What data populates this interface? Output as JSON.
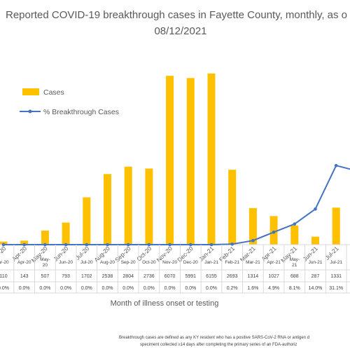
{
  "chart_data": {
    "type": "bar+line",
    "title_line1": "Reported COVID-19 breakthrough cases in Fayette County, monthly, as o",
    "title_line2": "08/12/2021",
    "xlabel": "Month of illness onset or testing",
    "footnote_line1": "Breakthrough cases are defined as any KY resident who has a positive SARS-CoV-2 RNA or antigen d",
    "footnote_line2": "speciment collected ≥14 days after completing the primary series of an FDA-authoriz",
    "legend_position": "upper-left",
    "legend_cases": "Cases",
    "legend_pct": "% Breakthrough Cases",
    "grid": false,
    "colors": {
      "bars": "#FFC000",
      "line": "#4472C4"
    },
    "categories": [
      {
        "tick": [
          "ar-20"
        ],
        "row": [
          "ar-20"
        ]
      },
      {
        "tick": [
          "Apr-20"
        ],
        "row": [
          "Apr-20"
        ]
      },
      {
        "tick": [
          "May-20"
        ],
        "row": [
          "May-",
          "20"
        ]
      },
      {
        "tick": [
          "Jun-20"
        ],
        "row": [
          "Jun-20"
        ]
      },
      {
        "tick": [
          "Jul-20"
        ],
        "row": [
          "Jul-20"
        ]
      },
      {
        "tick": [
          "Aug-20"
        ],
        "row": [
          "Aug-20"
        ]
      },
      {
        "tick": [
          "Sep-20"
        ],
        "row": [
          "Sep-20"
        ]
      },
      {
        "tick": [
          "Oct-20"
        ],
        "row": [
          "Oct-20"
        ]
      },
      {
        "tick": [
          "Nov-20"
        ],
        "row": [
          "Nov-20"
        ]
      },
      {
        "tick": [
          "Dec-20"
        ],
        "row": [
          "Dec-20"
        ]
      },
      {
        "tick": [
          "Jan-21"
        ],
        "row": [
          "Jan-21"
        ]
      },
      {
        "tick": [
          "Feb-21"
        ],
        "row": [
          "Feb-21"
        ]
      },
      {
        "tick": [
          "Mar-21"
        ],
        "row": [
          "Mar-21"
        ]
      },
      {
        "tick": [
          "Apr-21"
        ],
        "row": [
          "Apr-21"
        ]
      },
      {
        "tick": [
          "May-21"
        ],
        "row": [
          "May-",
          "21"
        ]
      },
      {
        "tick": [
          "Jun-21"
        ],
        "row": [
          "Jun-21"
        ]
      },
      {
        "tick": [
          "Jul-21"
        ],
        "row": [
          "Jul-21"
        ]
      },
      {
        "tick": [
          "Aug"
        ],
        "row": []
      }
    ],
    "cases_labels": [
      "110",
      "143",
      "507",
      "793",
      "1702",
      "2538",
      "2804",
      "2736",
      "6070",
      "5991",
      "6155",
      "2693",
      "1314",
      "1027",
      "688",
      "287",
      "1331",
      ""
    ],
    "pct_labels": [
      "0.0%",
      "0.0%",
      "0.0%",
      "0.0%",
      "0.0%",
      "0.0%",
      "0.0%",
      "0.0%",
      "0.0%",
      "0.0%",
      "0.0%",
      "0.2%",
      "1.6%",
      "4.9%",
      "8.1%",
      "14.0%",
      "31.1%",
      ""
    ],
    "cases": [
      110,
      143,
      507,
      793,
      1702,
      2538,
      2804,
      2736,
      6070,
      5991,
      6155,
      2693,
      1314,
      1027,
      688,
      287,
      1331,
      null
    ],
    "pct": [
      0.0,
      0.0,
      0.0,
      0.0,
      0.0,
      0.0,
      0.0,
      0.0,
      0.0,
      0.0,
      0.0,
      0.2,
      1.6,
      4.9,
      8.1,
      14.0,
      31.1,
      29
    ],
    "cases_axis_max": 6200,
    "pct_axis_max": 70
  }
}
